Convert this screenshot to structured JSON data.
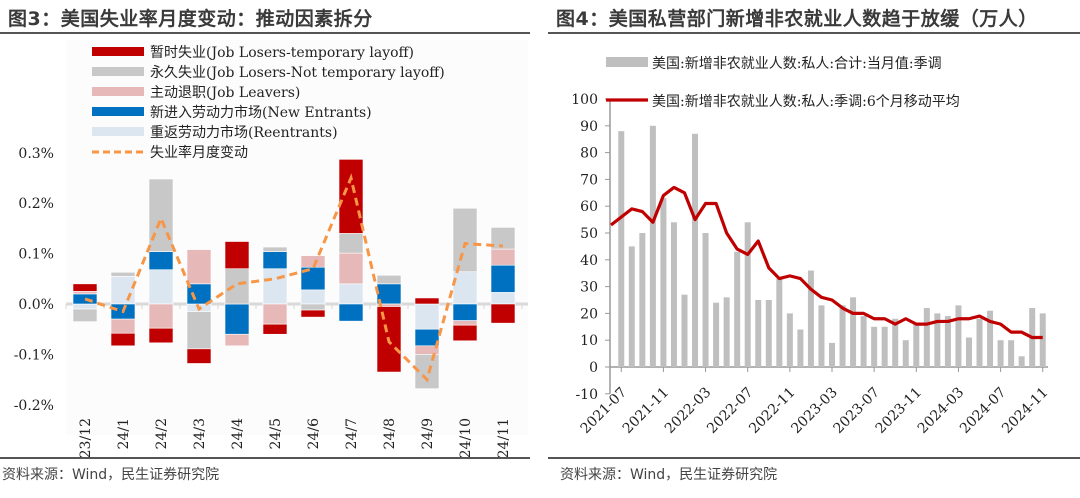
{
  "left_panel": {
    "title": "图3：美国失业率月度变动：推动因素拆分",
    "source": "资料来源：Wind，民生证券研究院"
  },
  "right_panel": {
    "title": "图4：美国私营部门新增非农就业人数趋于放缓（万人）",
    "source": "资料来源：Wind，民生证券研究院"
  },
  "chart_data": [
    {
      "type": "bar",
      "stacked": true,
      "title": "美国失业率月度变动：推动因素拆分",
      "xlabel": "",
      "ylabel": "",
      "ylim": [
        -0.2,
        0.3
      ],
      "yticks": [
        "0.3%",
        "0.2%",
        "0.1%",
        "0.0%",
        "-0.1%",
        "-0.2%"
      ],
      "ytick_values": [
        0.3,
        0.2,
        0.1,
        0.0,
        -0.1,
        -0.2
      ],
      "legend_position": "top",
      "grid": false,
      "categories": [
        "23/12",
        "24/1",
        "24/2",
        "24/3",
        "24/4",
        "24/5",
        "24/6",
        "24/7",
        "24/8",
        "24/9",
        "24/10",
        "24/11"
      ],
      "series": [
        {
          "name": "暂时失业(Job Losers-temporary layoff)",
          "color": "#C00000",
          "kind": "bar",
          "values": [
            0.015,
            -0.025,
            -0.029,
            -0.029,
            0.054,
            -0.02,
            -0.014,
            0.147,
            -0.13,
            0.012,
            -0.031,
            -0.038
          ]
        },
        {
          "name": "永久失业(Job Losers-Not temporary layoff)",
          "color": "#C8C8C8",
          "kind": "bar",
          "values": [
            -0.025,
            0.008,
            0.144,
            -0.074,
            0.07,
            0.009,
            -0.012,
            0.039,
            0.017,
            -0.068,
            0.126,
            0.043
          ]
        },
        {
          "name": "主动退职(Job Leavers)",
          "color": "#E6B8B8",
          "kind": "bar",
          "values": [
            0.005,
            -0.028,
            -0.048,
            0.068,
            -0.023,
            -0.04,
            0.023,
            0.061,
            -0.005,
            -0.017,
            -0.009,
            0.032
          ]
        },
        {
          "name": "新进入劳动力市场(New Entrants)",
          "color": "#0070C0",
          "kind": "bar",
          "values": [
            0.02,
            -0.03,
            0.036,
            0.04,
            -0.06,
            0.034,
            0.045,
            -0.034,
            0.04,
            -0.033,
            -0.033,
            0.054
          ]
        },
        {
          "name": "重返劳动力市场(Reentrants)",
          "color": "#DCE6F1",
          "kind": "bar",
          "values": [
            -0.01,
            0.055,
            0.068,
            -0.015,
            0.0,
            0.07,
            0.028,
            0.04,
            -0.0,
            -0.05,
            0.064,
            0.023
          ]
        },
        {
          "name": "失业率月度变动",
          "color": "#F79646",
          "kind": "line",
          "dashed": true,
          "values": [
            0.01,
            -0.015,
            0.17,
            -0.01,
            0.04,
            0.05,
            0.07,
            0.25,
            -0.075,
            -0.15,
            0.12,
            0.115
          ]
        }
      ]
    },
    {
      "type": "bar",
      "title": "美国私营部门新增非农就业人数趋于放缓（万人）",
      "xlabel": "",
      "ylabel": "万人",
      "ylim": [
        -10,
        100
      ],
      "yticks": [
        "100",
        "90",
        "80",
        "70",
        "60",
        "50",
        "40",
        "30",
        "20",
        "10",
        "0",
        "-10"
      ],
      "ytick_values": [
        100,
        90,
        80,
        70,
        60,
        50,
        40,
        30,
        20,
        10,
        0,
        -10
      ],
      "legend_position": "top",
      "grid": false,
      "x": [
        "2021-07",
        "2021-08",
        "2021-09",
        "2021-10",
        "2021-11",
        "2021-12",
        "2022-01",
        "2022-02",
        "2022-03",
        "2022-04",
        "2022-05",
        "2022-06",
        "2022-07",
        "2022-08",
        "2022-09",
        "2022-10",
        "2022-11",
        "2022-12",
        "2023-01",
        "2023-02",
        "2023-03",
        "2023-04",
        "2023-05",
        "2023-06",
        "2023-07",
        "2023-08",
        "2023-09",
        "2023-10",
        "2023-11",
        "2023-12",
        "2024-01",
        "2024-02",
        "2024-03",
        "2024-04",
        "2024-05",
        "2024-06",
        "2024-07",
        "2024-08",
        "2024-09",
        "2024-10",
        "2024-11"
      ],
      "x_tick_labels": [
        "2021-07",
        "2021-11",
        "2022-03",
        "2022-07",
        "2022-11",
        "2023-03",
        "2023-07",
        "2023-11",
        "2024-03",
        "2024-07",
        "2024-11"
      ],
      "series": [
        {
          "name": "美国:新增非农就业人数:私人:合计:当月值:季调",
          "color": "#BFBFBF",
          "kind": "bar",
          "values": [
            88,
            45,
            50,
            90,
            63,
            54,
            27,
            87,
            50,
            24,
            26,
            43,
            54,
            25,
            25,
            33,
            20,
            14,
            36,
            23,
            9,
            23,
            26,
            19,
            15,
            15,
            18,
            10,
            16,
            22,
            20,
            19,
            23,
            11,
            18,
            21,
            10,
            10,
            4,
            22,
            20
          ]
        },
        {
          "name": "美国:新增非农就业人数:私人:季调:6个月移动平均",
          "color": "#C00000",
          "kind": "line",
          "values": [
            53,
            59,
            58,
            54,
            64,
            67,
            65,
            55,
            61,
            61,
            50,
            44,
            42,
            47,
            37,
            33,
            34,
            33,
            29,
            26,
            25,
            22,
            20,
            20,
            18,
            18,
            16,
            18,
            16,
            16,
            17,
            17,
            18,
            18,
            19,
            17,
            16,
            13,
            13,
            11,
            11
          ]
        }
      ]
    }
  ]
}
